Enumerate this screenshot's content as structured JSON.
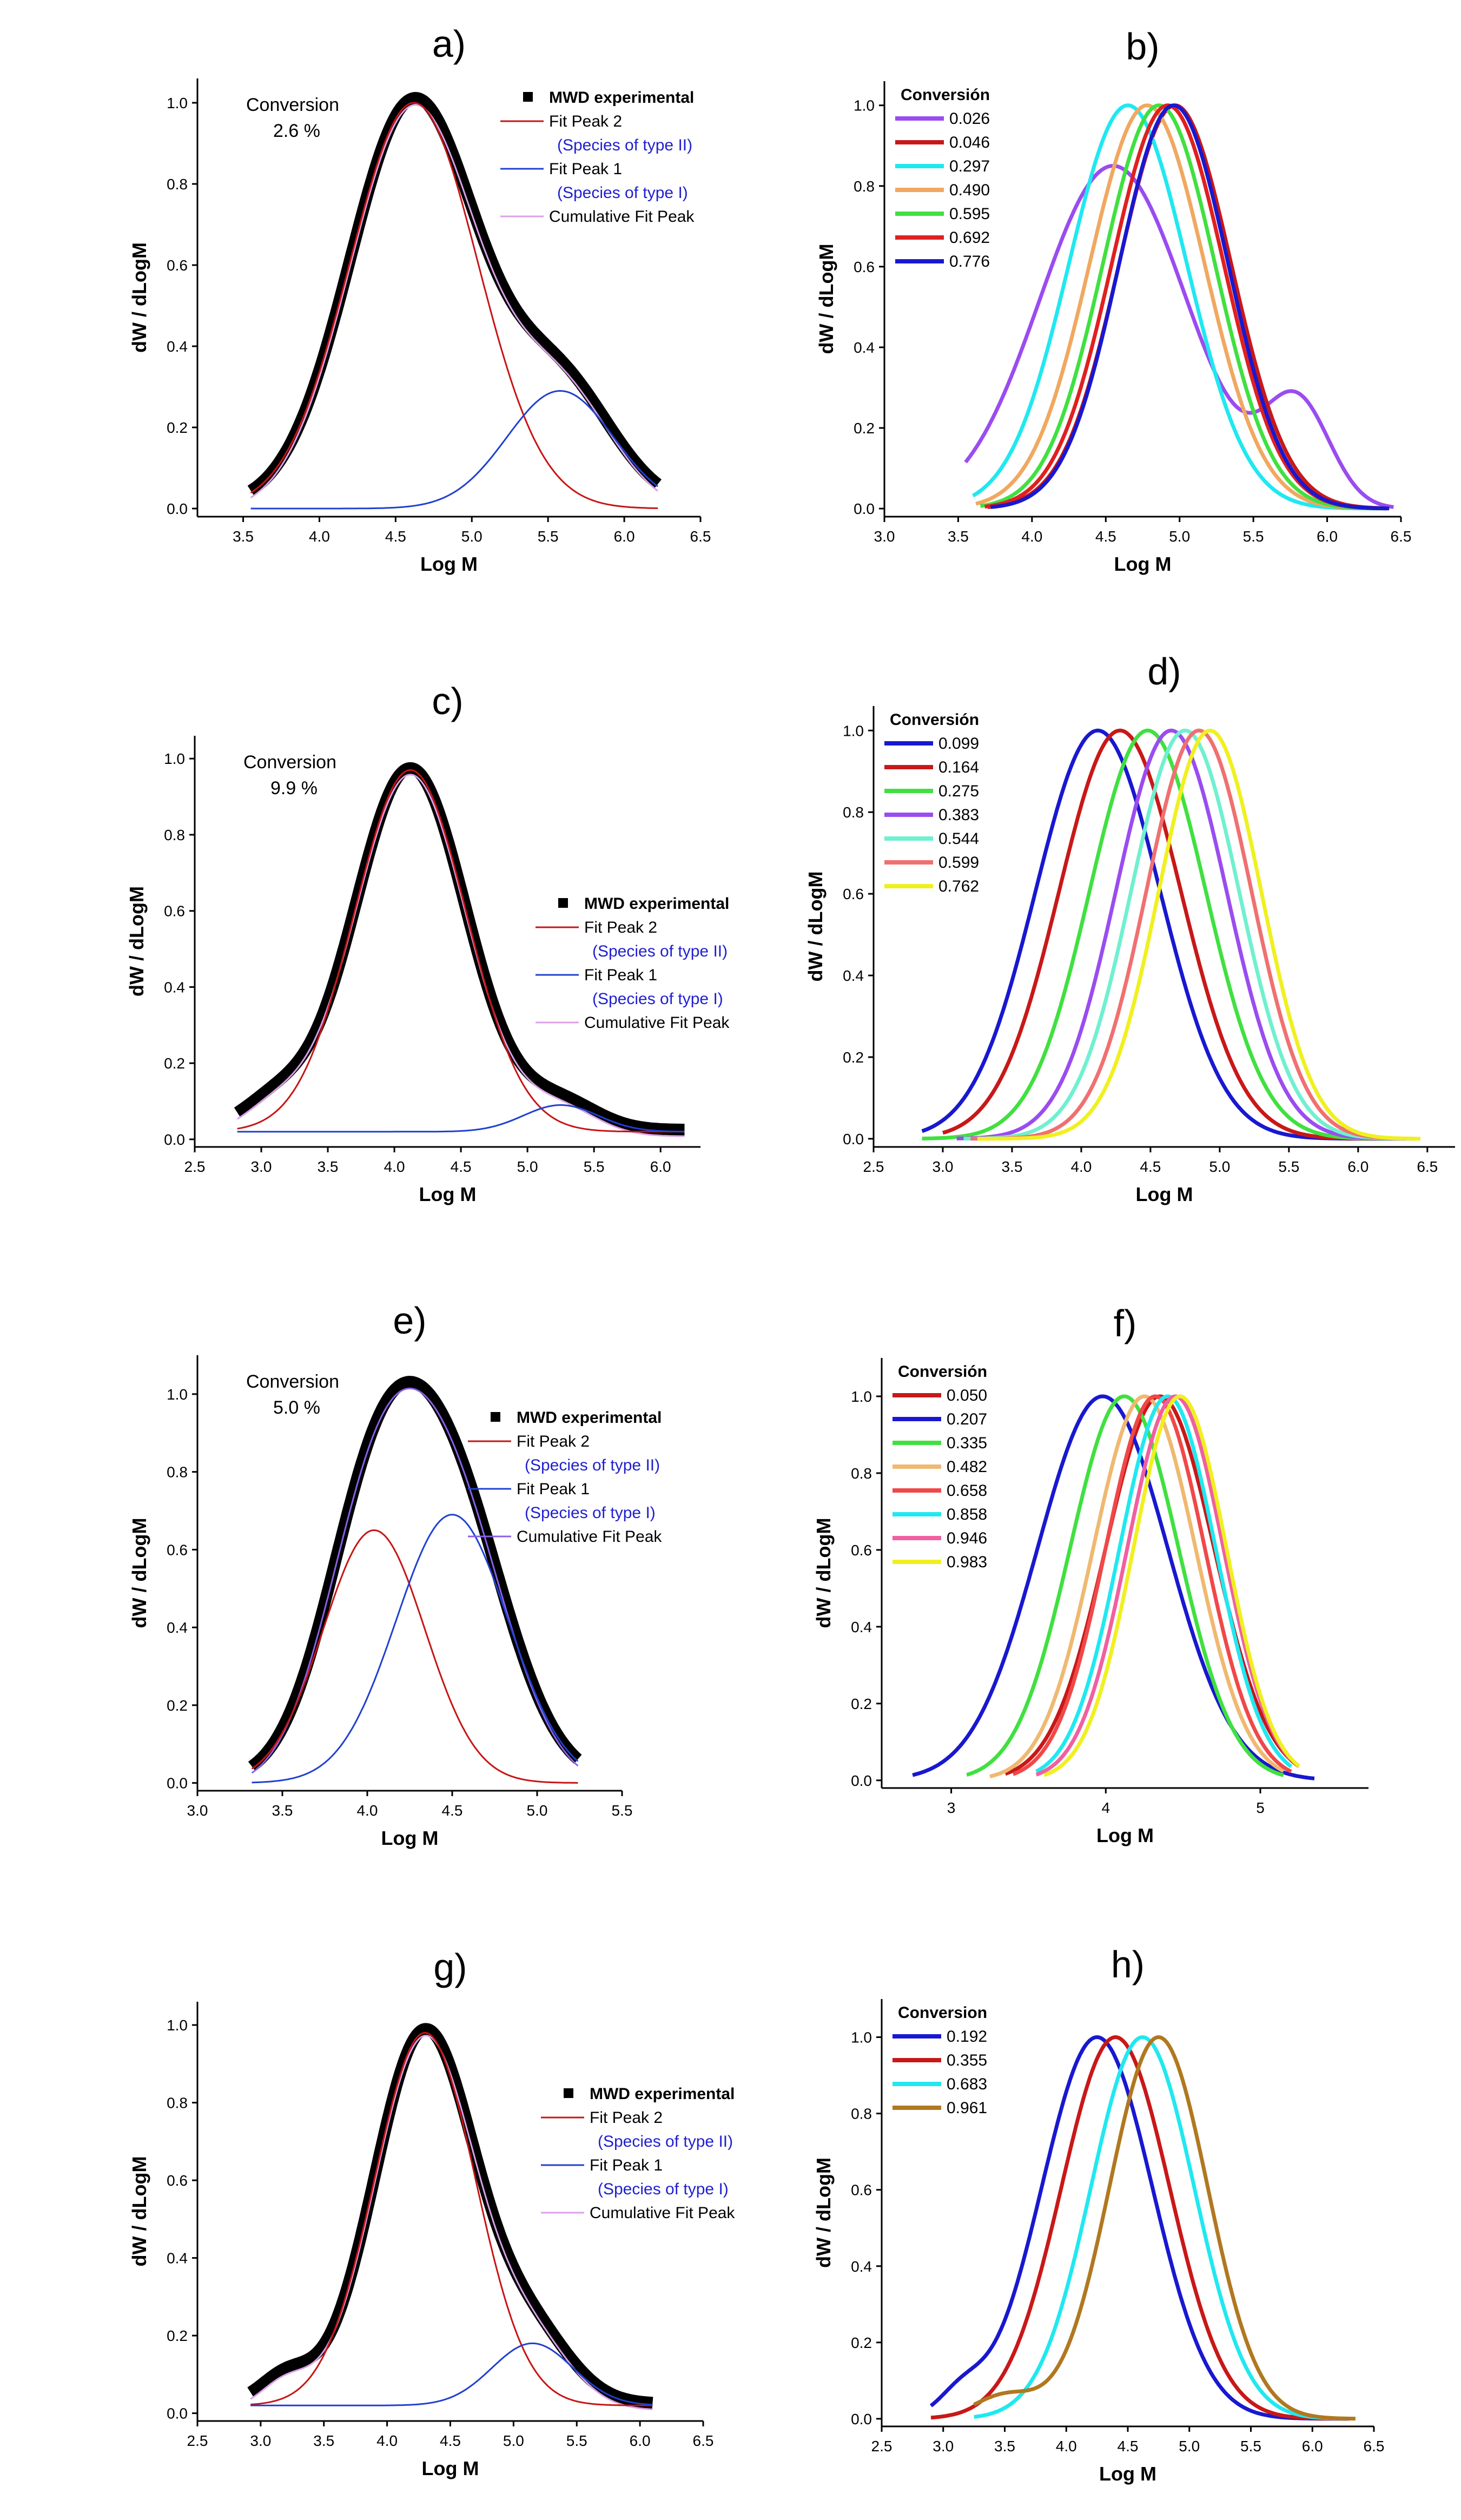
{
  "chart_data": [
    {
      "panel": "a)",
      "type": "line",
      "mode": "fit",
      "xlabel": "Log M",
      "ylabel": "dW / dLogM",
      "xlim": [
        3.2,
        6.5
      ],
      "ylim": [
        -0.02,
        1.06
      ],
      "xticks": [
        "3.5",
        "4.0",
        "4.5",
        "5.0",
        "5.5",
        "6.0",
        "6.5"
      ],
      "yticks": [
        "0.0",
        "0.2",
        "0.4",
        "0.6",
        "0.8",
        "1.0"
      ],
      "note": [
        "Conversion",
        "2.6 %"
      ],
      "xrange": [
        3.55,
        6.22
      ],
      "peaks": [
        {
          "mu": 4.62,
          "sigma": 0.42,
          "h": 1.0
        },
        {
          "mu": 5.58,
          "sigma": 0.35,
          "h": 0.29
        }
      ],
      "baseline": 0.0,
      "legend": [
        {
          "label": "MWD experimental",
          "color": "#000000",
          "style": "square"
        },
        {
          "label": "Fit Peak 2",
          "color": "#c81414",
          "style": "line",
          "sub": "(Species of type II)"
        },
        {
          "label": "Fit Peak 1",
          "color": "#2040d0",
          "style": "line",
          "sub": "(Species of type I)"
        },
        {
          "label": "Cumulative Fit Peak",
          "color": "#d9a0e8",
          "style": "line"
        }
      ]
    },
    {
      "panel": "b)",
      "type": "line",
      "mode": "series",
      "xlabel": "Log M",
      "ylabel": "dW / dLogM",
      "xlim": [
        3.0,
        6.5
      ],
      "ylim": [
        -0.02,
        1.06
      ],
      "xticks": [
        "3.0",
        "3.5",
        "4.0",
        "4.5",
        "5.0",
        "5.5",
        "6.0",
        "6.5"
      ],
      "yticks": [
        "0.0",
        "0.2",
        "0.4",
        "0.6",
        "0.8",
        "1.0"
      ],
      "legend_title": "Conversión",
      "series": [
        {
          "name": "0.026",
          "color": "#9a4cf0",
          "range": [
            3.55,
            6.45
          ],
          "peaks": [
            {
              "mu": 4.55,
              "sigma": 0.5,
              "h": 0.85
            },
            {
              "mu": 5.8,
              "sigma": 0.22,
              "h": 0.25
            }
          ]
        },
        {
          "name": "0.046",
          "color": "#c81818",
          "range": [
            3.7,
            6.4
          ],
          "peaks": [
            {
              "mu": 4.97,
              "sigma": 0.38,
              "h": 1.0
            }
          ]
        },
        {
          "name": "0.297",
          "color": "#20e8f0",
          "range": [
            3.6,
            6.35
          ],
          "peaks": [
            {
              "mu": 4.65,
              "sigma": 0.4,
              "h": 1.0
            }
          ]
        },
        {
          "name": "0.490",
          "color": "#f0a860",
          "range": [
            3.62,
            6.38
          ],
          "peaks": [
            {
              "mu": 4.78,
              "sigma": 0.39,
              "h": 1.0
            }
          ]
        },
        {
          "name": "0.595",
          "color": "#40e040",
          "range": [
            3.65,
            6.4
          ],
          "peaks": [
            {
              "mu": 4.86,
              "sigma": 0.38,
              "h": 1.0
            }
          ]
        },
        {
          "name": "0.692",
          "color": "#e02020",
          "range": [
            3.68,
            6.4
          ],
          "peaks": [
            {
              "mu": 4.92,
              "sigma": 0.38,
              "h": 1.0
            }
          ]
        },
        {
          "name": "0.776",
          "color": "#1818d0",
          "range": [
            3.72,
            6.42
          ],
          "peaks": [
            {
              "mu": 4.96,
              "sigma": 0.37,
              "h": 1.0
            }
          ]
        }
      ]
    },
    {
      "panel": "c)",
      "type": "line",
      "mode": "fit",
      "xlabel": "Log M",
      "ylabel": "dW / dLogM",
      "xlim": [
        2.5,
        6.3
      ],
      "ylim": [
        -0.02,
        1.06
      ],
      "xticks": [
        "2.5",
        "3.0",
        "3.5",
        "4.0",
        "4.5",
        "5.0",
        "5.5",
        "6.0"
      ],
      "yticks": [
        "0.0",
        "0.2",
        "0.4",
        "0.6",
        "0.8",
        "1.0"
      ],
      "note": [
        "Conversion",
        "9.9 %"
      ],
      "xrange": [
        2.82,
        6.18
      ],
      "peaks": [
        {
          "mu": 4.12,
          "sigma": 0.42,
          "h": 0.95
        },
        {
          "mu": 5.25,
          "sigma": 0.28,
          "h": 0.07
        },
        {
          "mu": 3.1,
          "sigma": 0.25,
          "h": 0.07
        }
      ],
      "baseline": 0.02,
      "legend": [
        {
          "label": "MWD experimental",
          "color": "#000000",
          "style": "square"
        },
        {
          "label": "Fit Peak 2",
          "color": "#c81414",
          "style": "line",
          "sub": "(Species of type II)"
        },
        {
          "label": "Fit Peak 1",
          "color": "#2040d0",
          "style": "line",
          "sub": "(Species of type I)"
        },
        {
          "label": "Cumulative Fit Peak",
          "color": "#d9a0e8",
          "style": "line"
        }
      ]
    },
    {
      "panel": "d)",
      "type": "line",
      "mode": "series",
      "xlabel": "Log M",
      "ylabel": "dW / dLogM",
      "xlim": [
        2.5,
        6.7
      ],
      "ylim": [
        -0.02,
        1.06
      ],
      "xticks": [
        "2.5",
        "3.0",
        "3.5",
        "4.0",
        "4.5",
        "5.0",
        "5.5",
        "6.0",
        "6.5"
      ],
      "yticks": [
        "0.0",
        "0.2",
        "0.4",
        "0.6",
        "0.8",
        "1.0"
      ],
      "legend_title": "Conversión",
      "series": [
        {
          "name": "0.099",
          "color": "#1818d0",
          "range": [
            2.85,
            6.2
          ],
          "peaks": [
            {
              "mu": 4.12,
              "sigma": 0.45,
              "h": 1.0
            }
          ]
        },
        {
          "name": "0.164",
          "color": "#c81818",
          "range": [
            3.0,
            6.25
          ],
          "peaks": [
            {
              "mu": 4.28,
              "sigma": 0.44,
              "h": 1.0
            }
          ]
        },
        {
          "name": "0.275",
          "color": "#40e040",
          "range": [
            2.85,
            6.3
          ],
          "peaks": [
            {
              "mu": 4.48,
              "sigma": 0.42,
              "h": 1.0
            }
          ]
        },
        {
          "name": "0.383",
          "color": "#9a4cf0",
          "range": [
            3.1,
            6.35
          ],
          "peaks": [
            {
              "mu": 4.65,
              "sigma": 0.4,
              "h": 1.0
            }
          ]
        },
        {
          "name": "0.544",
          "color": "#70f0d0",
          "range": [
            3.15,
            6.35
          ],
          "peaks": [
            {
              "mu": 4.75,
              "sigma": 0.39,
              "h": 1.0
            }
          ]
        },
        {
          "name": "0.599",
          "color": "#f07070",
          "range": [
            3.2,
            6.4
          ],
          "peaks": [
            {
              "mu": 4.85,
              "sigma": 0.38,
              "h": 1.0
            }
          ]
        },
        {
          "name": "0.762",
          "color": "#f0f020",
          "range": [
            3.25,
            6.45
          ],
          "peaks": [
            {
              "mu": 4.93,
              "sigma": 0.37,
              "h": 1.0
            }
          ]
        }
      ]
    },
    {
      "panel": "e)",
      "type": "line",
      "mode": "fit",
      "xlabel": "Log M",
      "ylabel": "dW / dLogM",
      "xlim": [
        3.0,
        5.5
      ],
      "ylim": [
        -0.02,
        1.1
      ],
      "xticks": [
        "3.0",
        "3.5",
        "4.0",
        "4.5",
        "5.0",
        "5.5"
      ],
      "yticks": [
        "0.0",
        "0.2",
        "0.4",
        "0.6",
        "0.8",
        "1.0"
      ],
      "note": [
        "Conversion",
        "5.0 %"
      ],
      "xrange": [
        3.32,
        5.24
      ],
      "peaks": [
        {
          "mu": 4.04,
          "sigma": 0.3,
          "h": 0.65
        },
        {
          "mu": 4.5,
          "sigma": 0.33,
          "h": 0.69
        }
      ],
      "baseline": 0.0,
      "legend": [
        {
          "label": "MWD experimental",
          "color": "#000000",
          "style": "square"
        },
        {
          "label": "Fit Peak 2",
          "color": "#c81414",
          "style": "line",
          "sub": "(Species of type II)"
        },
        {
          "label": "Fit Peak 1",
          "color": "#2040d0",
          "style": "line",
          "sub": "(Species of type I)"
        },
        {
          "label": "Cumulative Fit Peak",
          "color": "#8a60e8",
          "style": "line"
        }
      ]
    },
    {
      "panel": "f)",
      "type": "line",
      "mode": "series",
      "xlabel": "Log M",
      "ylabel": "dW / dLogM",
      "xlim": [
        2.55,
        5.7
      ],
      "ylim": [
        -0.02,
        1.1
      ],
      "xticks": [
        "3",
        "4",
        "5"
      ],
      "yticks": [
        "0.0",
        "0.2",
        "0.4",
        "0.6",
        "0.8",
        "1.0"
      ],
      "legend_title": "Conversión",
      "series": [
        {
          "name": "0.050",
          "color": "#c81818",
          "range": [
            3.35,
            5.25
          ],
          "peaks": [
            {
              "mu": 4.35,
              "sigma": 0.35,
              "h": 1.0
            }
          ]
        },
        {
          "name": "0.207",
          "color": "#1818d0",
          "range": [
            2.75,
            5.35
          ],
          "peaks": [
            {
              "mu": 3.98,
              "sigma": 0.42,
              "h": 1.0
            }
          ]
        },
        {
          "name": "0.335",
          "color": "#40e040",
          "range": [
            3.1,
            5.15
          ],
          "peaks": [
            {
              "mu": 4.12,
              "sigma": 0.35,
              "h": 1.0
            }
          ]
        },
        {
          "name": "0.482",
          "color": "#f0b870",
          "range": [
            3.25,
            5.15
          ],
          "peaks": [
            {
              "mu": 4.25,
              "sigma": 0.33,
              "h": 1.0
            }
          ]
        },
        {
          "name": "0.658",
          "color": "#f04848",
          "range": [
            3.4,
            5.2
          ],
          "peaks": [
            {
              "mu": 4.32,
              "sigma": 0.32,
              "h": 1.0
            }
          ]
        },
        {
          "name": "0.858",
          "color": "#20e8f0",
          "range": [
            3.55,
            5.2
          ],
          "peaks": [
            {
              "mu": 4.4,
              "sigma": 0.31,
              "h": 1.0
            }
          ]
        },
        {
          "name": "0.946",
          "color": "#f060a0",
          "range": [
            3.55,
            5.2
          ],
          "peaks": [
            {
              "mu": 4.45,
              "sigma": 0.31,
              "h": 1.0
            }
          ]
        },
        {
          "name": "0.983",
          "color": "#f0f020",
          "range": [
            3.6,
            5.25
          ],
          "peaks": [
            {
              "mu": 4.48,
              "sigma": 0.3,
              "h": 1.0
            }
          ]
        }
      ]
    },
    {
      "panel": "g)",
      "type": "line",
      "mode": "fit",
      "xlabel": "Log M",
      "ylabel": "dW / dLogM",
      "xlim": [
        2.5,
        6.5
      ],
      "ylim": [
        -0.02,
        1.06
      ],
      "xticks": [
        "2.5",
        "3.0",
        "3.5",
        "4.0",
        "4.5",
        "5.0",
        "5.5",
        "6.0",
        "6.5"
      ],
      "yticks": [
        "0.0",
        "0.2",
        "0.4",
        "0.6",
        "0.8",
        "1.0"
      ],
      "xrange": [
        2.92,
        6.1
      ],
      "peaks": [
        {
          "mu": 4.3,
          "sigma": 0.4,
          "h": 0.96
        },
        {
          "mu": 5.15,
          "sigma": 0.32,
          "h": 0.16
        },
        {
          "mu": 3.2,
          "sigma": 0.2,
          "h": 0.07
        }
      ],
      "baseline": 0.02,
      "legend": [
        {
          "label": "MWD experimental",
          "color": "#000000",
          "style": "square"
        },
        {
          "label": "Fit Peak 2",
          "color": "#c81414",
          "style": "line",
          "sub": "(Species of type II)"
        },
        {
          "label": "Fit Peak 1",
          "color": "#2040d0",
          "style": "line",
          "sub": "(Species of type I)"
        },
        {
          "label": "Cumulative Fit Peak",
          "color": "#d9a0e8",
          "style": "line"
        }
      ]
    },
    {
      "panel": "h)",
      "type": "line",
      "mode": "series",
      "xlabel": "Log M",
      "ylabel": "dW / dLogM",
      "xlim": [
        2.5,
        6.5
      ],
      "ylim": [
        -0.02,
        1.1
      ],
      "xticks": [
        "2.5",
        "3.0",
        "3.5",
        "4.0",
        "4.5",
        "5.0",
        "5.5",
        "6.0",
        "6.5"
      ],
      "yticks": [
        "0.0",
        "0.2",
        "0.4",
        "0.6",
        "0.8",
        "1.0"
      ],
      "legend_title": "Conversion",
      "series": [
        {
          "name": "0.192",
          "color": "#1818d0",
          "range": [
            2.9,
            6.3
          ],
          "peaks": [
            {
              "mu": 4.25,
              "sigma": 0.45,
              "h": 1.0
            },
            {
              "mu": 3.15,
              "sigma": 0.18,
              "h": 0.06
            }
          ]
        },
        {
          "name": "0.355",
          "color": "#c81818",
          "range": [
            2.9,
            6.3
          ],
          "peaks": [
            {
              "mu": 4.4,
              "sigma": 0.44,
              "h": 1.0
            }
          ]
        },
        {
          "name": "0.683",
          "color": "#20e8f0",
          "range": [
            3.25,
            6.3
          ],
          "peaks": [
            {
              "mu": 4.62,
              "sigma": 0.42,
              "h": 1.0
            }
          ]
        },
        {
          "name": "0.961",
          "color": "#b07820",
          "range": [
            3.25,
            6.35
          ],
          "peaks": [
            {
              "mu": 4.75,
              "sigma": 0.4,
              "h": 1.0
            },
            {
              "mu": 3.5,
              "sigma": 0.25,
              "h": 0.06
            }
          ]
        }
      ]
    }
  ]
}
